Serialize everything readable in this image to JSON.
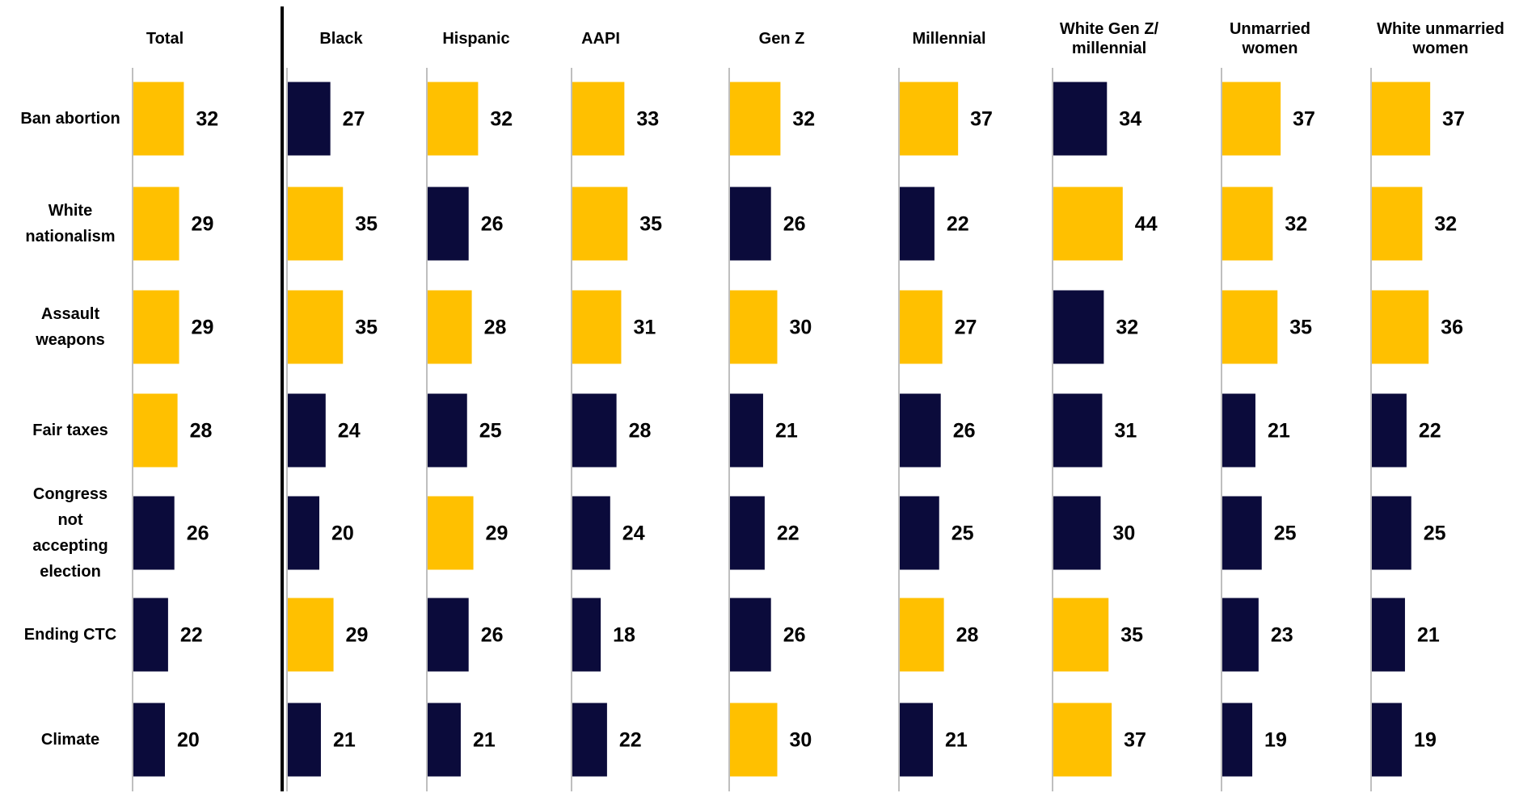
{
  "chart_data": {
    "type": "bar",
    "categories": [
      "Ban abortion",
      "White nationalism",
      "Assault weapons",
      "Fair taxes",
      "Congress not accepting election",
      "Ending CTC",
      "Climate"
    ],
    "series": [
      {
        "name": "Total",
        "values": [
          32,
          29,
          29,
          28,
          26,
          22,
          20
        ],
        "colors": [
          "#FFC000",
          "#FFC000",
          "#FFC000",
          "#FFC000",
          "#0B0B3B",
          "#0B0B3B",
          "#0B0B3B"
        ]
      },
      {
        "name": "Black",
        "values": [
          27,
          35,
          35,
          24,
          20,
          29,
          21
        ],
        "colors": [
          "#0B0B3B",
          "#FFC000",
          "#FFC000",
          "#0B0B3B",
          "#0B0B3B",
          "#FFC000",
          "#0B0B3B"
        ]
      },
      {
        "name": "Hispanic",
        "values": [
          32,
          26,
          28,
          25,
          29,
          26,
          21
        ],
        "colors": [
          "#FFC000",
          "#0B0B3B",
          "#FFC000",
          "#0B0B3B",
          "#FFC000",
          "#0B0B3B",
          "#0B0B3B"
        ]
      },
      {
        "name": "AAPI",
        "values": [
          33,
          35,
          31,
          28,
          24,
          18,
          22
        ],
        "colors": [
          "#FFC000",
          "#FFC000",
          "#FFC000",
          "#0B0B3B",
          "#0B0B3B",
          "#0B0B3B",
          "#0B0B3B"
        ]
      },
      {
        "name": "Gen Z",
        "values": [
          32,
          26,
          30,
          21,
          22,
          26,
          30
        ],
        "colors": [
          "#FFC000",
          "#0B0B3B",
          "#FFC000",
          "#0B0B3B",
          "#0B0B3B",
          "#0B0B3B",
          "#FFC000"
        ]
      },
      {
        "name": "Millennial",
        "values": [
          37,
          22,
          27,
          26,
          25,
          28,
          21
        ],
        "colors": [
          "#FFC000",
          "#0B0B3B",
          "#FFC000",
          "#0B0B3B",
          "#0B0B3B",
          "#FFC000",
          "#0B0B3B"
        ]
      },
      {
        "name": "White Gen Z/ millennial",
        "values": [
          34,
          44,
          32,
          31,
          30,
          35,
          37
        ],
        "colors": [
          "#0B0B3B",
          "#FFC000",
          "#0B0B3B",
          "#0B0B3B",
          "#0B0B3B",
          "#FFC000",
          "#FFC000"
        ]
      },
      {
        "name": "Unmarried women",
        "values": [
          37,
          32,
          35,
          21,
          25,
          23,
          19
        ],
        "colors": [
          "#FFC000",
          "#FFC000",
          "#FFC000",
          "#0B0B3B",
          "#0B0B3B",
          "#0B0B3B",
          "#0B0B3B"
        ]
      },
      {
        "name": "White unmarried women",
        "values": [
          37,
          32,
          36,
          22,
          25,
          21,
          19
        ],
        "colors": [
          "#FFC000",
          "#FFC000",
          "#FFC000",
          "#0B0B3B",
          "#0B0B3B",
          "#0B0B3B",
          "#0B0B3B"
        ]
      }
    ]
  }
}
